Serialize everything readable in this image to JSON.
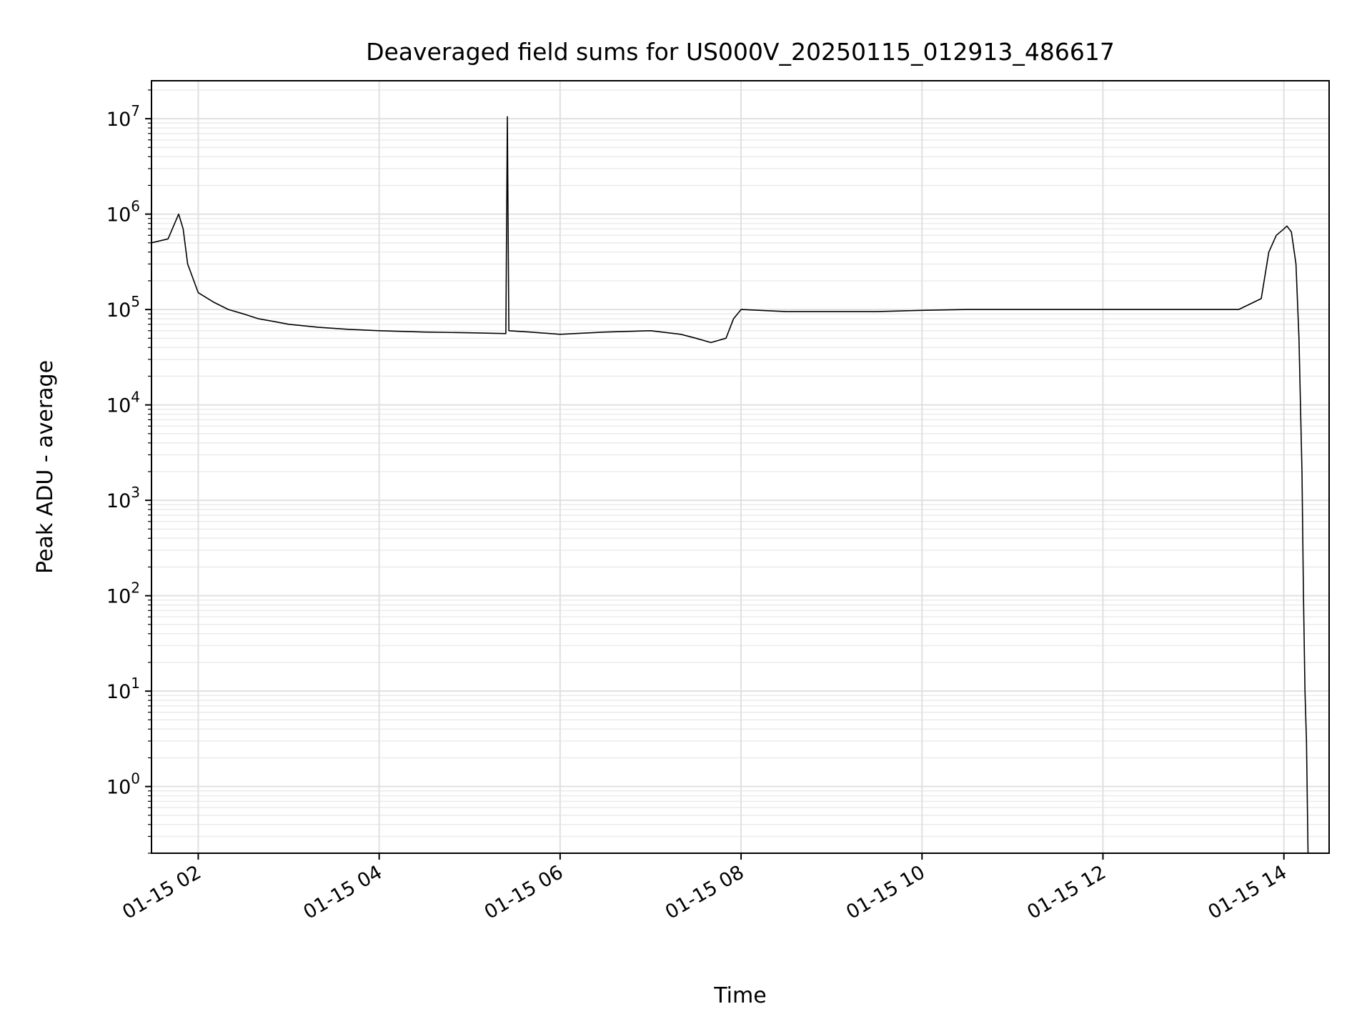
{
  "chart_data": {
    "type": "line",
    "title": "Deaveraged field sums for US000V_20250115_012913_486617",
    "xlabel": "Time",
    "ylabel": "Peak ADU - average",
    "yscale": "log",
    "ylim": [
      0.2,
      25000000
    ],
    "xlim": [
      "2025-01-15 01:29",
      "2025-01-15 14:30"
    ],
    "grid": true,
    "x_ticks": [
      {
        "value": "2025-01-15 02:00",
        "label": "01-15 02"
      },
      {
        "value": "2025-01-15 04:00",
        "label": "01-15 04"
      },
      {
        "value": "2025-01-15 06:00",
        "label": "01-15 06"
      },
      {
        "value": "2025-01-15 08:00",
        "label": "01-15 08"
      },
      {
        "value": "2025-01-15 10:00",
        "label": "01-15 10"
      },
      {
        "value": "2025-01-15 12:00",
        "label": "01-15 12"
      },
      {
        "value": "2025-01-15 14:00",
        "label": "01-15 14"
      }
    ],
    "y_ticks": [
      {
        "value": 1,
        "base": "10",
        "exp": "0"
      },
      {
        "value": 10,
        "base": "10",
        "exp": "1"
      },
      {
        "value": 100,
        "base": "10",
        "exp": "2"
      },
      {
        "value": 1000,
        "base": "10",
        "exp": "3"
      },
      {
        "value": 10000,
        "base": "10",
        "exp": "4"
      },
      {
        "value": 100000,
        "base": "10",
        "exp": "5"
      },
      {
        "value": 1000000,
        "base": "10",
        "exp": "6"
      },
      {
        "value": 10000000,
        "base": "10",
        "exp": "7"
      }
    ],
    "series": [
      {
        "color": "#000000",
        "x": [
          "2025-01-15 01:29",
          "2025-01-15 01:40",
          "2025-01-15 01:47",
          "2025-01-15 01:50",
          "2025-01-15 01:53",
          "2025-01-15 02:00",
          "2025-01-15 02:10",
          "2025-01-15 02:20",
          "2025-01-15 02:30",
          "2025-01-15 02:40",
          "2025-01-15 02:50",
          "2025-01-15 03:00",
          "2025-01-15 03:20",
          "2025-01-15 03:40",
          "2025-01-15 04:00",
          "2025-01-15 04:30",
          "2025-01-15 05:00",
          "2025-01-15 05:24",
          "2025-01-15 05:25",
          "2025-01-15 05:26",
          "2025-01-15 05:40",
          "2025-01-15 06:00",
          "2025-01-15 06:30",
          "2025-01-15 07:00",
          "2025-01-15 07:20",
          "2025-01-15 07:30",
          "2025-01-15 07:40",
          "2025-01-15 07:50",
          "2025-01-15 07:55",
          "2025-01-15 08:00",
          "2025-01-15 08:30",
          "2025-01-15 09:00",
          "2025-01-15 09:30",
          "2025-01-15 10:00",
          "2025-01-15 10:30",
          "2025-01-15 11:00",
          "2025-01-15 11:30",
          "2025-01-15 12:00",
          "2025-01-15 12:30",
          "2025-01-15 13:00",
          "2025-01-15 13:30",
          "2025-01-15 13:45",
          "2025-01-15 13:50",
          "2025-01-15 13:55",
          "2025-01-15 14:00",
          "2025-01-15 14:02",
          "2025-01-15 14:05",
          "2025-01-15 14:08",
          "2025-01-15 14:10",
          "2025-01-15 14:12",
          "2025-01-15 14:13",
          "2025-01-15 14:14",
          "2025-01-15 14:15",
          "2025-01-15 14:16"
        ],
        "y": [
          500000,
          550000,
          1000000,
          700000,
          300000,
          150000,
          120000,
          100000,
          90000,
          80000,
          75000,
          70000,
          65000,
          62000,
          60000,
          58000,
          57000,
          56000,
          10500000,
          60000,
          58000,
          55000,
          58000,
          60000,
          55000,
          50000,
          45000,
          50000,
          80000,
          100000,
          95000,
          95000,
          95000,
          98000,
          100000,
          100000,
          100000,
          100000,
          100000,
          100000,
          100000,
          130000,
          400000,
          600000,
          700000,
          750000,
          650000,
          300000,
          50000,
          2000,
          100,
          10,
          3,
          0.2
        ]
      }
    ]
  }
}
